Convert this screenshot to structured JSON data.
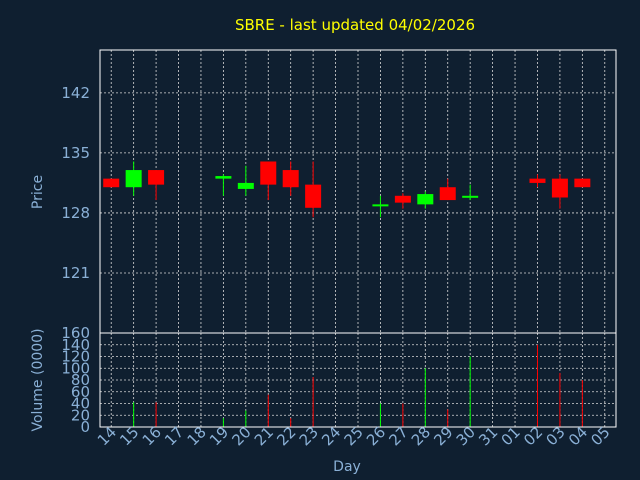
{
  "chart_data": {
    "type": "candlestick",
    "title": "SBRE - last updated 04/02/2026",
    "xlabel": "Day",
    "colors": {
      "background": "#0f1f30",
      "up": "#00ff00",
      "down": "#ff0000",
      "title": "#ffff00",
      "text": "#8ab0d6",
      "grid": "#d8d8d8"
    },
    "grid": true,
    "x_tick_labels": [
      "14",
      "15",
      "16",
      "17",
      "18",
      "19",
      "20",
      "21",
      "22",
      "23",
      "24",
      "25",
      "26",
      "27",
      "28",
      "29",
      "30",
      "31",
      "01",
      "02",
      "03",
      "04",
      "05"
    ],
    "price_panel": {
      "ylabel": "Price",
      "ylim": [
        114,
        147
      ],
      "yticks": [
        121,
        128,
        135,
        142
      ]
    },
    "volume_panel": {
      "ylabel": "Volume (0000)",
      "ylim": [
        0,
        160
      ],
      "yticks": [
        0,
        20,
        40,
        60,
        80,
        100,
        120,
        140,
        160
      ]
    },
    "candles": [
      {
        "day": "14",
        "open": 132.0,
        "high": 132.0,
        "low": 131.0,
        "close": 131.0,
        "volume": 0
      },
      {
        "day": "15",
        "open": 131.0,
        "high": 134.0,
        "low": 130.0,
        "close": 133.0,
        "volume": 42
      },
      {
        "day": "16",
        "open": 133.0,
        "high": 133.0,
        "low": 129.5,
        "close": 131.3,
        "volume": 42
      },
      {
        "day": "19",
        "open": 132.0,
        "high": 132.5,
        "low": 130.0,
        "close": 132.3,
        "volume": 15
      },
      {
        "day": "20",
        "open": 130.8,
        "high": 133.5,
        "low": 130.0,
        "close": 131.5,
        "volume": 28
      },
      {
        "day": "21",
        "open": 134.0,
        "high": 134.0,
        "low": 129.5,
        "close": 131.3,
        "volume": 55
      },
      {
        "day": "22",
        "open": 133.0,
        "high": 134.0,
        "low": 130.0,
        "close": 131.0,
        "volume": 15
      },
      {
        "day": "23",
        "open": 131.3,
        "high": 134.0,
        "low": 127.5,
        "close": 128.6,
        "volume": 85
      },
      {
        "day": "26",
        "open": 128.8,
        "high": 130.0,
        "low": 127.5,
        "close": 129.0,
        "volume": 40
      },
      {
        "day": "27",
        "open": 130.0,
        "high": 130.3,
        "low": 128.5,
        "close": 129.2,
        "volume": 40
      },
      {
        "day": "28",
        "open": 129.0,
        "high": 130.5,
        "low": 128.5,
        "close": 130.2,
        "volume": 100
      },
      {
        "day": "29",
        "open": 131.0,
        "high": 132.0,
        "low": 129.5,
        "close": 129.5,
        "volume": 30
      },
      {
        "day": "30",
        "open": 129.8,
        "high": 131.3,
        "low": 129.5,
        "close": 130.0,
        "volume": 120
      },
      {
        "day": "02",
        "open": 132.0,
        "high": 132.5,
        "low": 131.0,
        "close": 131.5,
        "volume": 140
      },
      {
        "day": "03",
        "open": 132.0,
        "high": 132.5,
        "low": 128.5,
        "close": 129.8,
        "volume": 92
      },
      {
        "day": "04",
        "open": 132.0,
        "high": 132.0,
        "low": 131.0,
        "close": 131.0,
        "volume": 80
      }
    ]
  }
}
